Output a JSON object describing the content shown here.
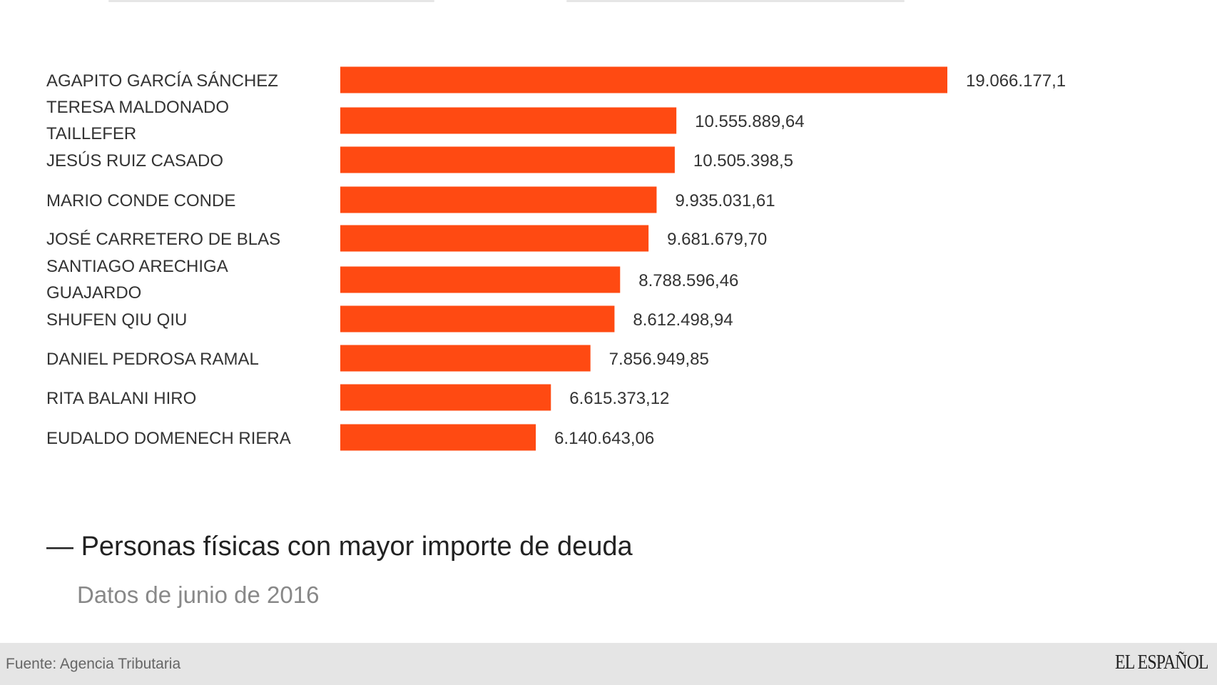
{
  "chart_data": {
    "type": "bar",
    "orientation": "horizontal",
    "title": "Personas físicas con mayor importe de deuda",
    "subtitle": "Datos de junio de 2016",
    "categories": [
      [
        "AGAPITO GARCÍA SÁNCHEZ"
      ],
      [
        "TERESA MALDONADO",
        "TAILLEFER"
      ],
      [
        "JESÚS RUIZ CASADO"
      ],
      [
        "MARIO CONDE CONDE"
      ],
      [
        "JOSÉ CARRETERO DE BLAS"
      ],
      [
        "SANTIAGO ARECHIGA",
        "GUAJARDO"
      ],
      [
        "SHUFEN QIU QIU"
      ],
      [
        "DANIEL PEDROSA RAMAL"
      ],
      [
        "RITA BALANI HIRO"
      ],
      [
        "EUDALDO DOMENECH RIERA"
      ]
    ],
    "values": [
      19066177.1,
      10555889.64,
      10505398.5,
      9935031.61,
      9681679.7,
      8788596.46,
      8612498.94,
      7856949.85,
      6615373.12,
      6140643.06
    ],
    "value_labels": [
      "19.066.177,1",
      "10.555.889,64",
      "10.505.398,5",
      "9.935.031,61",
      "9.681.679,70",
      "8.788.596,46",
      "8.612.498,94",
      "7.856.949,85",
      "6.615.373,12",
      "6.140.643,06"
    ],
    "grid": false,
    "legend": "none",
    "bar_color": "#FF4A12"
  },
  "title_dash": "—",
  "footer": {
    "source": "Fuente: Agencia Tributaria",
    "logo": "EL ESPAÑOL"
  }
}
